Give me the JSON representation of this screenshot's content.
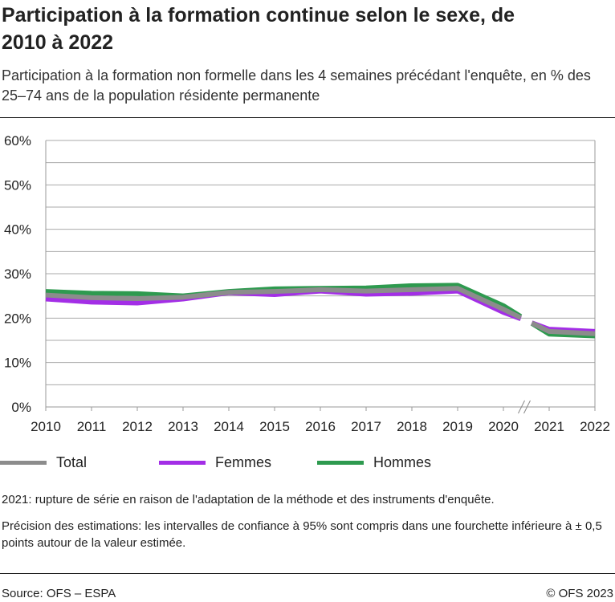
{
  "title": "Participation à la formation continue selon le sexe, de 2010 à 2022",
  "subtitle": "Participation à la formation non formelle dans les 4 semaines précédant l'enquête, en % des 25–74 ans de la population résidente permanente",
  "notes": [
    "2021: rupture de série en raison de l'adaptation de la méthode et des instruments d'enquête.",
    "Précision des estimations: les intervalles de confiance à 95% sont compris dans une fourchette inférieure à ± 0,5 points autour de la valeur estimée."
  ],
  "source": "Source: OFS – ESPA",
  "copyright": "© OFS 2023",
  "chart_data": {
    "type": "line",
    "x": [
      2010,
      2011,
      2012,
      2013,
      2014,
      2015,
      2016,
      2017,
      2018,
      2019,
      2020,
      2021,
      2022
    ],
    "x_tick_labels": [
      "2010",
      "2011",
      "2012",
      "2013",
      "2014",
      "2015",
      "2016",
      "2017",
      "2018",
      "2019",
      "2020",
      "2021",
      "2022"
    ],
    "y_tick_labels": [
      "0%",
      "10%",
      "20%",
      "30%",
      "40%",
      "50%",
      "60%"
    ],
    "ylim": [
      0,
      60
    ],
    "grid": true,
    "series_break_after": 2020,
    "legend_placement": "bottom",
    "series": [
      {
        "name": "Hommes",
        "color": "#2e9a4f",
        "values": [
          26.0,
          25.6,
          25.5,
          25.0,
          26.0,
          26.6,
          26.7,
          26.8,
          27.3,
          27.4,
          22.8,
          16.4,
          16.0
        ]
      },
      {
        "name": "Femmes",
        "color": "#a32ee6",
        "values": [
          24.3,
          23.6,
          23.4,
          24.3,
          25.7,
          25.3,
          26.1,
          25.4,
          25.6,
          26.1,
          21.3,
          17.5,
          17.0
        ]
      },
      {
        "name": "Total",
        "color": "#8c8c8c",
        "values": [
          25.2,
          24.6,
          24.4,
          24.7,
          25.8,
          26.0,
          26.4,
          26.1,
          26.4,
          26.7,
          22.0,
          17.0,
          16.5
        ]
      }
    ]
  }
}
